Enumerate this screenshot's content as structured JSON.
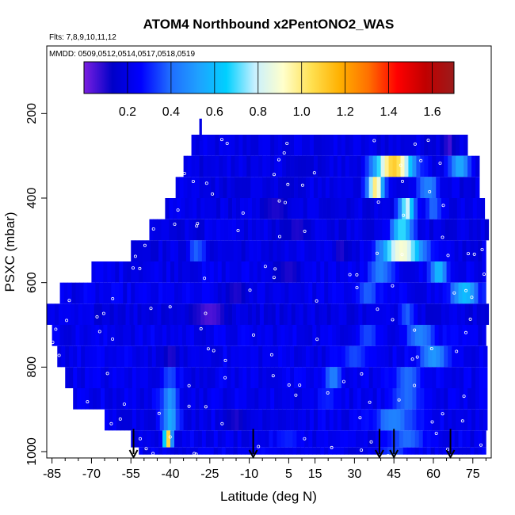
{
  "chart_data": {
    "type": "heatmap",
    "title": "ATOM4 Northbound x2PentONO2_WAS",
    "subtitle_flights": "Flts: 7,8,9,10,11,12",
    "subtitle_dates": "MMDD: 0509,0512,0514,0517,0518,0519",
    "xlabel": "Latitude (deg N)",
    "ylabel": "PSXC (mbar)",
    "xlim": [
      -87,
      82
    ],
    "ylim": [
      1015,
      40
    ],
    "y_reversed": true,
    "x_ticks": [
      -85,
      -70,
      -55,
      -40,
      -25,
      -10,
      5,
      15,
      30,
      45,
      60,
      75
    ],
    "x_minor_ticks": [
      -80,
      -75,
      -65,
      -60,
      -50,
      -45,
      -35,
      -30,
      -20,
      -15,
      -5,
      0,
      10,
      20,
      25,
      35,
      40,
      50,
      55,
      65,
      70,
      80
    ],
    "y_ticks": [
      200,
      400,
      600,
      800,
      1000
    ],
    "colorbar": {
      "min": 0.0,
      "max": 1.7,
      "ticks": [
        0.2,
        0.4,
        0.6,
        0.8,
        1.0,
        1.2,
        1.4,
        1.6
      ],
      "colors": [
        "#7b1fe0",
        "#0000c8",
        "#0000ff",
        "#1f6bff",
        "#1fa0ff",
        "#00d0ff",
        "#c8f0ff",
        "#ffffcc",
        "#ffe050",
        "#ffb000",
        "#ff7000",
        "#ff0000",
        "#c00000",
        "#9b1b1b"
      ]
    },
    "rows": [
      {
        "p": 275,
        "lat_min": -32,
        "lat_max": 72,
        "base": 0.2,
        "features": [
          {
            "lat": 66,
            "w": 4,
            "v": 0.06
          }
        ]
      },
      {
        "p": 325,
        "lat_min": -35,
        "lat_max": 77,
        "base": 0.2,
        "features": [
          {
            "lat": 45,
            "w": 14,
            "v": 1.1
          },
          {
            "lat": 70,
            "w": 8,
            "v": 0.55
          },
          {
            "lat": 10,
            "w": 10,
            "v": 0.15
          }
        ]
      },
      {
        "p": 375,
        "lat_min": -38,
        "lat_max": 77,
        "base": 0.2,
        "features": [
          {
            "lat": 38,
            "w": 6,
            "v": 1.0
          },
          {
            "lat": 58,
            "w": 8,
            "v": 0.45
          },
          {
            "lat": 5,
            "w": 8,
            "v": 0.15
          }
        ]
      },
      {
        "p": 425,
        "lat_min": -42,
        "lat_max": 79,
        "base": 0.2,
        "features": [
          {
            "lat": 50,
            "w": 6,
            "v": 0.8
          },
          {
            "lat": 60,
            "w": 5,
            "v": 0.4
          },
          {
            "lat": 0,
            "w": 10,
            "v": 0.1
          }
        ]
      },
      {
        "p": 475,
        "lat_min": -48,
        "lat_max": 80,
        "base": 0.2,
        "features": [
          {
            "lat": 48,
            "w": 8,
            "v": 0.7
          },
          {
            "lat": 8,
            "w": 10,
            "v": 0.1
          }
        ]
      },
      {
        "p": 525,
        "lat_min": -55,
        "lat_max": 80,
        "base": 0.2,
        "features": [
          {
            "lat": 48,
            "w": 16,
            "v": 0.9
          },
          {
            "lat": -30,
            "w": 6,
            "v": 0.38
          },
          {
            "lat": 25,
            "w": 6,
            "v": 0.1
          }
        ]
      },
      {
        "p": 575,
        "lat_min": -70,
        "lat_max": 80,
        "base": 0.22,
        "features": [
          {
            "lat": 40,
            "w": 8,
            "v": 0.45
          },
          {
            "lat": 62,
            "w": 6,
            "v": 0.6
          },
          {
            "lat": 5,
            "w": 10,
            "v": 0.1
          }
        ]
      },
      {
        "p": 625,
        "lat_min": -82,
        "lat_max": 80,
        "base": 0.22,
        "features": [
          {
            "lat": 72,
            "w": 10,
            "v": 0.6
          },
          {
            "lat": -15,
            "w": 10,
            "v": 0.1
          },
          {
            "lat": 35,
            "w": 8,
            "v": 0.38
          }
        ]
      },
      {
        "p": 675,
        "lat_min": -87,
        "lat_max": 80,
        "base": 0.2,
        "features": [
          {
            "lat": -25,
            "w": 14,
            "v": 0.05
          },
          {
            "lat": 50,
            "w": 6,
            "v": 0.38
          }
        ]
      },
      {
        "p": 725,
        "lat_min": -85,
        "lat_max": 80,
        "base": 0.22,
        "features": [
          {
            "lat": 35,
            "w": 8,
            "v": 0.35
          },
          {
            "lat": 55,
            "w": 10,
            "v": 0.45
          }
        ]
      },
      {
        "p": 775,
        "lat_min": -83,
        "lat_max": 80,
        "base": 0.22,
        "features": [
          {
            "lat": 30,
            "w": 10,
            "v": 0.35
          },
          {
            "lat": 60,
            "w": 10,
            "v": 0.5
          },
          {
            "lat": -40,
            "w": 8,
            "v": 0.1
          }
        ]
      },
      {
        "p": 825,
        "lat_min": -80,
        "lat_max": 80,
        "base": 0.22,
        "features": [
          {
            "lat": 22,
            "w": 6,
            "v": 0.45
          },
          {
            "lat": 50,
            "w": 10,
            "v": 0.4
          },
          {
            "lat": -40,
            "w": 6,
            "v": 0.35
          }
        ]
      },
      {
        "p": 875,
        "lat_min": -77,
        "lat_max": 80,
        "base": 0.22,
        "features": [
          {
            "lat": -40,
            "w": 6,
            "v": 0.5
          },
          {
            "lat": 20,
            "w": 8,
            "v": 0.3
          },
          {
            "lat": 50,
            "w": 10,
            "v": 0.4
          }
        ]
      },
      {
        "p": 925,
        "lat_min": -65,
        "lat_max": 80,
        "base": 0.22,
        "features": [
          {
            "lat": -40,
            "w": 6,
            "v": 0.55
          },
          {
            "lat": 45,
            "w": 14,
            "v": 0.45
          },
          {
            "lat": -15,
            "w": 8,
            "v": 0.1
          }
        ]
      },
      {
        "p": 975,
        "lat_min": -55,
        "lat_max": 80,
        "base": 0.22,
        "features": [
          {
            "lat": -41,
            "w": 3,
            "v": 1.1
          },
          {
            "lat": 50,
            "w": 12,
            "v": 0.4
          },
          {
            "lat": 5,
            "w": 10,
            "v": 0.3
          }
        ]
      },
      {
        "p": 1005,
        "lat_min": -52,
        "lat_max": 80,
        "base": 0.22,
        "features": [
          {
            "lat": 45,
            "w": 10,
            "v": 0.35
          }
        ]
      }
    ],
    "spike": {
      "lat": -28.5,
      "p_top": 212,
      "p_bottom": 265,
      "v": 0.2
    },
    "arrow_latitudes": [
      -54,
      -8.5,
      39.5,
      45,
      66.5
    ],
    "arrow_p_top": 965
  }
}
